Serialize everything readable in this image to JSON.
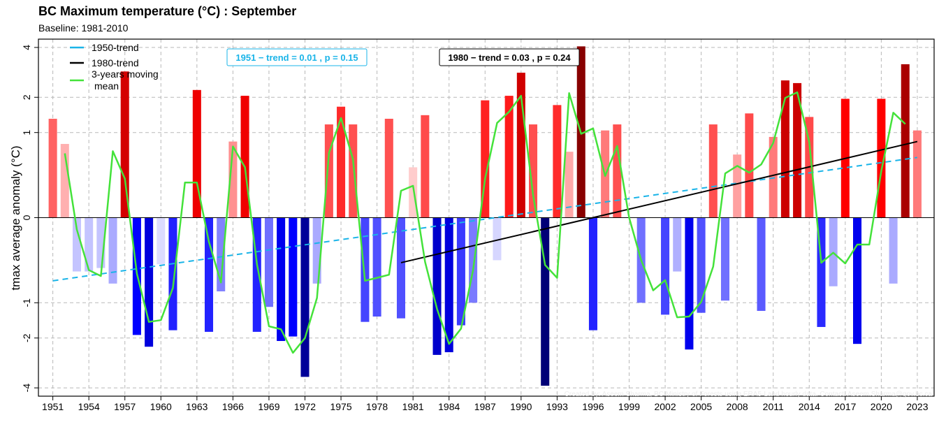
{
  "chart_data": {
    "type": "bar",
    "title": "BC Maximum temperature (°C) : September",
    "subtitle": "Baseline: 1981-2010",
    "ylabel": "tmax average anomaly (°C)",
    "xlabel": "",
    "ylim": [
      -4.4,
      4.4
    ],
    "yscale": "signed square root",
    "yticks": [
      -4,
      -2,
      -1,
      0,
      1,
      2,
      4
    ],
    "ytick_labels": [
      "-4",
      "-2",
      "-1",
      "0",
      "1",
      "2",
      "4"
    ],
    "xlim": [
      1949.8,
      2024.4
    ],
    "xticks": [
      1951,
      1954,
      1957,
      1960,
      1963,
      1966,
      1969,
      1972,
      1975,
      1978,
      1981,
      1984,
      1987,
      1990,
      1993,
      1996,
      1999,
      2002,
      2005,
      2008,
      2011,
      2014,
      2017,
      2020,
      2023
    ],
    "xtick_labels": [
      "1951",
      "1954",
      "1957",
      "1960",
      "1963",
      "1966",
      "1969",
      "1972",
      "1975",
      "1978",
      "1981",
      "1984",
      "1987",
      "1990",
      "1993",
      "1996",
      "1999",
      "2002",
      "2005",
      "2008",
      "2011",
      "2014",
      "2017",
      "2020",
      "2023"
    ],
    "grid": true,
    "legend_placement": "top-left",
    "legend": [
      {
        "label": "1950-trend",
        "color": "#1ab4e8",
        "style": "solid"
      },
      {
        "label": "1980-trend",
        "color": "#000000",
        "style": "solid"
      },
      {
        "label": "3-years moving",
        "label2": "mean",
        "color": "#44e23a",
        "style": "solid"
      }
    ],
    "annotations": {
      "trend_1951": {
        "label": "1951 − trend = 0.01 , p = 0.15",
        "color": "#1ab4e8"
      },
      "trend_1980": {
        "label": "1980 − trend = 0.03 , p = 0.24",
        "color": "#000000"
      }
    },
    "credit": "Created by: Aseem Sharma, BC Ministry of Forests using ERA5-Land hourly data. Contact: Aseem.Sharma@gov.bc.ca",
    "years": [
      1951,
      1952,
      1953,
      1954,
      1955,
      1956,
      1957,
      1958,
      1959,
      1960,
      1961,
      1962,
      1963,
      1964,
      1965,
      1966,
      1967,
      1968,
      1969,
      1970,
      1971,
      1972,
      1973,
      1974,
      1975,
      1976,
      1977,
      1978,
      1979,
      1980,
      1981,
      1982,
      1983,
      1984,
      1985,
      1986,
      1987,
      1988,
      1989,
      1990,
      1991,
      1992,
      1993,
      1994,
      1995,
      1996,
      1997,
      1998,
      1999,
      2000,
      2001,
      2002,
      2003,
      2004,
      2005,
      2006,
      2007,
      2008,
      2009,
      2010,
      2011,
      2012,
      2013,
      2014,
      2015,
      2016,
      2017,
      2018,
      2019,
      2020,
      2021,
      2022,
      2023
    ],
    "values": [
      1.35,
      0.75,
      -0.4,
      -0.4,
      -0.35,
      -0.6,
      2.95,
      -1.9,
      -2.3,
      -0.3,
      -1.75,
      0.0,
      2.25,
      -1.8,
      -0.75,
      0.8,
      2.05,
      -1.8,
      -1.1,
      -2.1,
      -1.95,
      -3.5,
      -0.6,
      1.2,
      1.7,
      1.2,
      -1.5,
      -1.35,
      1.35,
      -1.4,
      0.35,
      1.45,
      -2.6,
      -2.5,
      -1.6,
      -1.0,
      1.9,
      -0.25,
      2.05,
      2.9,
      1.2,
      -3.9,
      1.75,
      0.6,
      4.05,
      -1.75,
      1.05,
      1.2,
      0.0,
      -1.0,
      0.0,
      -1.3,
      -0.4,
      -2.4,
      -1.25,
      1.2,
      -0.95,
      0.55,
      1.5,
      -1.2,
      0.9,
      2.6,
      2.5,
      1.4,
      -1.65,
      -0.65,
      1.95,
      -2.2,
      0.0,
      1.95,
      -0.6,
      3.25,
      1.05
    ],
    "bar_colors": [
      "#ff6262",
      "#ffb0b0",
      "#c4c4ff",
      "#c4c4ff",
      "#c4c4ff",
      "#aaaaff",
      "#d40000",
      "#0000ff",
      "#0000dd",
      "#dcdcff",
      "#2222ff",
      "#ffffff",
      "#ee0000",
      "#2222ff",
      "#8282ff",
      "#ff9090",
      "#f00000",
      "#2222ff",
      "#7070ff",
      "#0000ee",
      "#0000ff",
      "#000099",
      "#aaaaff",
      "#ff5050",
      "#ff2a2a",
      "#ff5050",
      "#4545ff",
      "#5050ff",
      "#ff5050",
      "#5050ff",
      "#ffcccc",
      "#ff4a4a",
      "#0000cc",
      "#0000dd",
      "#3a3aff",
      "#7a7aff",
      "#ff2222",
      "#d6d6ff",
      "#ff1a1a",
      "#d00000",
      "#ff5050",
      "#000077",
      "#ff2a2a",
      "#ffa8a8",
      "#880000",
      "#2222ff",
      "#ff7a7a",
      "#ff5050",
      "#ffffff",
      "#7070ff",
      "#ffffff",
      "#4545ff",
      "#b0b0ff",
      "#0000ee",
      "#5050ff",
      "#ff5050",
      "#7070ff",
      "#ffa0a0",
      "#ff4a4a",
      "#5a5aff",
      "#ff7a7a",
      "#cc0000",
      "#cc0000",
      "#ff4a4a",
      "#2a2aff",
      "#aaaaff",
      "#ff0000",
      "#0000ee",
      "#ffffff",
      "#ff0000",
      "#aaaaff",
      "#aa0000",
      "#ff7a7a"
    ],
    "moving_mean": {
      "name": "3-years moving mean",
      "color": "#44e23a",
      "x": [
        1952,
        1953,
        1954,
        1955,
        1956,
        1957,
        1958,
        1959,
        1960,
        1961,
        1962,
        1963,
        1964,
        1965,
        1966,
        1967,
        1968,
        1969,
        1970,
        1971,
        1972,
        1973,
        1974,
        1975,
        1976,
        1977,
        1978,
        1979,
        1980,
        1981,
        1982,
        1983,
        1984,
        1985,
        1986,
        1987,
        1988,
        1989,
        1990,
        1991,
        1992,
        1993,
        1994,
        1995,
        1996,
        1997,
        1998,
        1999,
        2000,
        2001,
        2002,
        2003,
        2004,
        2005,
        2006,
        2007,
        2008,
        2009,
        2010,
        2011,
        2012,
        2013,
        2014,
        2015,
        2016,
        2017,
        2018,
        2019,
        2020,
        2021,
        2022
      ],
      "y": [
        0.57,
        -0.02,
        -0.38,
        -0.47,
        0.61,
        0.21,
        -0.43,
        -1.5,
        -1.45,
        -0.68,
        0.17,
        0.17,
        -0.08,
        -0.58,
        0.7,
        0.35,
        -0.3,
        -1.63,
        -1.72,
        -2.52,
        -2.0,
        -0.89,
        0.58,
        1.37,
        0.47,
        -0.55,
        -0.5,
        -0.45,
        0.1,
        0.14,
        -0.27,
        -1.15,
        -2.2,
        -1.7,
        -0.38,
        0.21,
        1.24,
        1.55,
        2.05,
        0.07,
        -0.31,
        -0.5,
        2.14,
        0.97,
        1.1,
        0.24,
        0.71,
        0.0,
        -0.25,
        -0.73,
        -0.54,
        -1.37,
        -1.35,
        -0.98,
        -0.33,
        0.27,
        0.37,
        0.28,
        0.39,
        0.77,
        1.98,
        2.17,
        0.79,
        -0.28,
        -0.17,
        -0.29,
        -0.1,
        -0.1,
        0.3,
        1.52,
        1.21
      ]
    },
    "trend_1950": {
      "name": "1950-trend",
      "color": "#1ab4e8",
      "x": [
        1951,
        2023
      ],
      "y": [
        -0.55,
        0.5
      ]
    },
    "trend_1980": {
      "name": "1980-trend",
      "color": "#000000",
      "x": [
        1980,
        2023
      ],
      "y": [
        -0.28,
        0.8
      ]
    }
  }
}
